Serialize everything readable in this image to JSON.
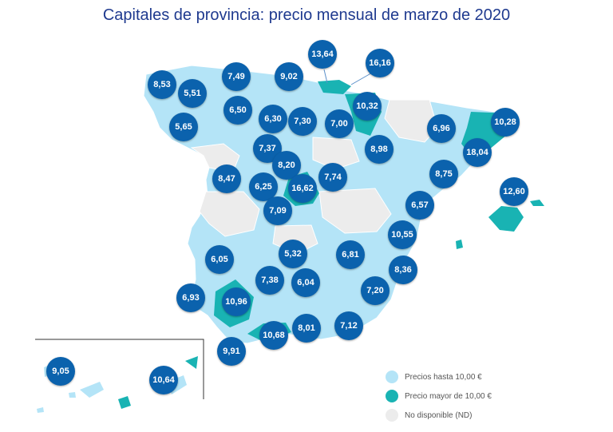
{
  "title": "Capitales de provincia: precio mensual de marzo de 2020",
  "colors": {
    "low": "#b4e4f7",
    "high": "#19b3b3",
    "nd": "#ececec",
    "bubble": "#0b62ad",
    "title": "#1f3a8f"
  },
  "legend": {
    "low": "Precios hasta 10,00 €",
    "high": "Precio mayor de 10,00 €",
    "nd": "No disponible (ND)"
  },
  "values": [
    "8,53",
    "5,51",
    "7,49",
    "9,02",
    "13,64",
    "16,16",
    "6,50",
    "6,30",
    "7,30",
    "7,00",
    "10,32",
    "5,65",
    "6,96",
    "10,28",
    "18,04",
    "7,37",
    "8,98",
    "8,20",
    "8,47",
    "6,25",
    "16,62",
    "7,74",
    "8,75",
    "12,60",
    "7,09",
    "6,57",
    "10,55",
    "6,05",
    "5,32",
    "6,81",
    "8,36",
    "7,38",
    "6,04",
    "7,20",
    "6,93",
    "10,96",
    "10,68",
    "8,01",
    "7,12",
    "9,91",
    "9,05",
    "10,64"
  ]
}
